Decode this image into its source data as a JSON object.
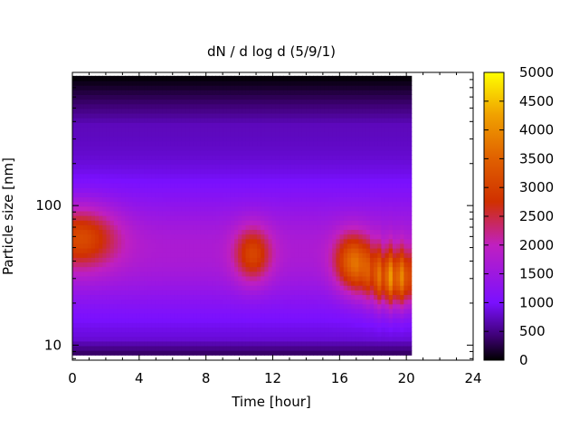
{
  "chart_data": {
    "type": "heatmap",
    "title": "dN / d log d (5/9/1)",
    "xlabel": "Time [hour]",
    "ylabel": "Particle size [nm]",
    "x_range": [
      0,
      24
    ],
    "x_ticks": [
      "0",
      "4",
      "8",
      "12",
      "16",
      "20",
      "24"
    ],
    "x_tick_values": [
      0,
      4,
      8,
      12,
      16,
      20,
      24
    ],
    "y_scale": "log",
    "y_range": [
      7.8,
      900
    ],
    "y_ticks": [
      "10",
      "100"
    ],
    "y_tick_values": [
      10,
      100
    ],
    "data_time_range": [
      0,
      20.3
    ],
    "data_size_range": [
      8.5,
      850
    ],
    "colorbar": {
      "range": [
        0,
        5000
      ],
      "ticks": [
        "0",
        "500",
        "1000",
        "1500",
        "2000",
        "2500",
        "3000",
        "3500",
        "4000",
        "4500",
        "5000"
      ],
      "tick_values": [
        0,
        500,
        1000,
        1500,
        2000,
        2500,
        3000,
        3500,
        4000,
        4500,
        5000
      ],
      "colors": [
        "#000000",
        "#3c0070",
        "#7a10ff",
        "#c020c0",
        "#d03000",
        "#e06000",
        "#f0a000",
        "#ffff00"
      ]
    },
    "features": [
      {
        "time": 0.5,
        "size": 60,
        "value": 3000
      },
      {
        "time": 10.8,
        "size": 45,
        "value": 2900
      },
      {
        "time": 16.8,
        "size": 40,
        "value": 3300
      },
      {
        "time": 19.3,
        "size": 30,
        "value": 3700
      }
    ]
  }
}
